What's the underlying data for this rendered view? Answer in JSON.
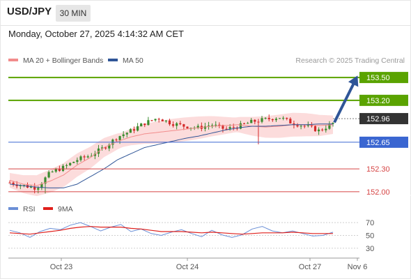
{
  "header": {
    "symbol": "USD/JPY",
    "timeframe": "30 MIN",
    "datetime": "Monday, October 27, 2025 4:14:32 AM CET"
  },
  "chart_data": [
    {
      "type": "candlestick",
      "title": "",
      "y_range": [
        151.88,
        153.62
      ],
      "y_axis_position": "right",
      "grid": false,
      "legend": [
        {
          "label": "MA 20 + Bollinger Bands",
          "color": "#f28c8c"
        },
        {
          "label": "MA 50",
          "color": "#2f5597"
        }
      ],
      "credit": "Research © 2025 Trading Central",
      "x_tick_labels": [
        "Oct 23",
        "Oct 24",
        "Oct 27",
        "Nov 6"
      ],
      "levels": [
        {
          "value": 153.5,
          "label": "153.50",
          "color": "#5aa300",
          "style": "resistance"
        },
        {
          "value": 153.2,
          "label": "153.20",
          "color": "#5aa300",
          "style": "resistance"
        },
        {
          "value": 152.96,
          "label": "152.96",
          "color": "#333333",
          "style": "last-price"
        },
        {
          "value": 152.65,
          "label": "152.65",
          "color": "#3a66d1",
          "style": "pivot"
        },
        {
          "value": 152.3,
          "label": "152.30",
          "color": "#d64545",
          "style": "support"
        },
        {
          "value": 152.0,
          "label": "152.00",
          "color": "#d64545",
          "style": "support"
        }
      ],
      "forecast_arrow": {
        "from": 152.91,
        "to": 153.5,
        "color": "#2f5597"
      },
      "close_path": [
        152.12,
        152.08,
        152.05,
        152.25,
        152.32,
        152.42,
        152.48,
        152.58,
        152.72,
        152.8,
        152.9,
        152.97,
        152.9,
        152.86,
        152.84,
        152.88,
        152.82,
        152.86,
        152.92,
        152.95,
        152.98,
        152.9,
        152.86,
        152.8,
        152.9
      ],
      "ma20_path": [
        152.15,
        152.1,
        152.08,
        152.14,
        152.22,
        152.35,
        152.45,
        152.58,
        152.66,
        152.72,
        152.76,
        152.78,
        152.8,
        152.82,
        152.84,
        152.86,
        152.87,
        152.88,
        152.86,
        152.85,
        152.86,
        152.88,
        152.88,
        152.87,
        152.88
      ],
      "bb_width": 0.12,
      "ma50_path": [
        152.1,
        152.08,
        152.06,
        152.05,
        152.05,
        152.1,
        152.2,
        152.3,
        152.42,
        152.5,
        152.58,
        152.62,
        152.66,
        152.7,
        152.73,
        152.77,
        152.81,
        152.84,
        152.86,
        152.86,
        152.87,
        152.88,
        152.88,
        152.89,
        152.89
      ],
      "last_price_value": 152.96
    },
    {
      "type": "line",
      "title": "",
      "y_range": [
        20,
        80
      ],
      "y_tick_labels": [
        70,
        50,
        30
      ],
      "y_axis_position": "right",
      "legend": [
        {
          "label": "RSI",
          "color": "#6b8fd6"
        },
        {
          "label": "9MA",
          "color": "#e0201c"
        }
      ],
      "series": [
        {
          "name": "RSI",
          "values": [
            58,
            54,
            47,
            56,
            61,
            59,
            66,
            70,
            64,
            57,
            63,
            67,
            56,
            60,
            53,
            50,
            55,
            59,
            53,
            48,
            58,
            51,
            47,
            51,
            60,
            64,
            57,
            54,
            57,
            53,
            49,
            50,
            55
          ]
        },
        {
          "name": "9MA",
          "values": [
            54,
            53,
            52,
            54,
            56,
            58,
            61,
            63,
            64,
            63,
            63,
            63,
            61,
            60,
            58,
            56,
            56,
            56,
            55,
            54,
            55,
            54,
            53,
            52,
            53,
            54,
            54,
            54,
            55,
            54,
            53,
            53,
            53
          ]
        }
      ]
    }
  ]
}
